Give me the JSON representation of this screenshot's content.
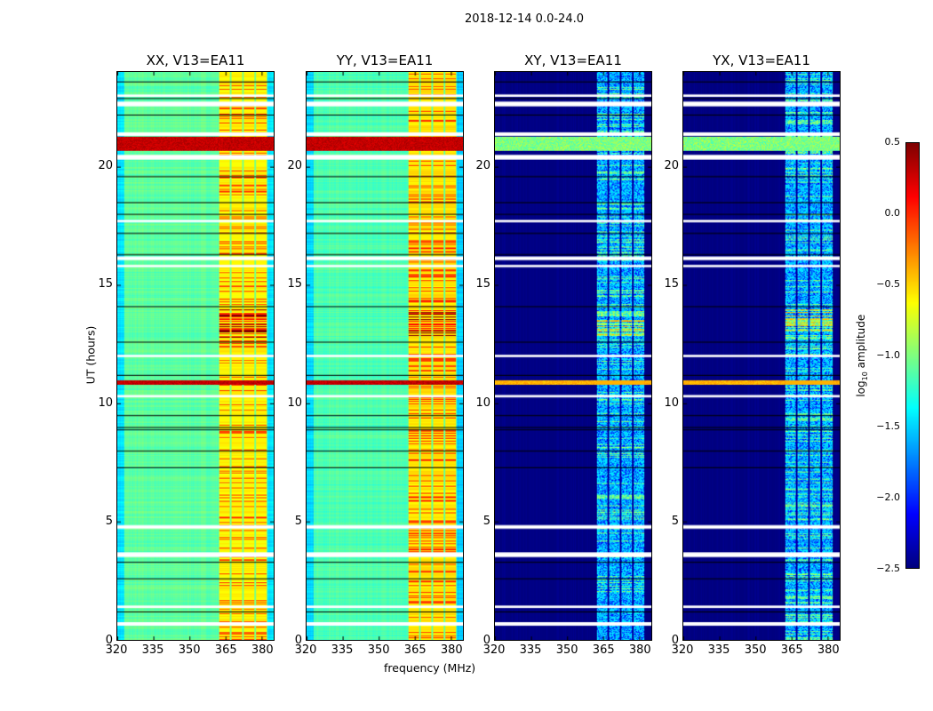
{
  "chart_data": {
    "type": "heatmap",
    "title": "2018-12-14 0.0-24.0",
    "xlabel": "frequency (MHz)",
    "ylabel": "UT (hours)",
    "xlim": [
      320,
      385
    ],
    "ylim": [
      0,
      24
    ],
    "xticks": [
      "320",
      "335",
      "350",
      "365",
      "380"
    ],
    "yticks": [
      "0",
      "5",
      "10",
      "15",
      "20"
    ],
    "colormap": "jet",
    "colorbar": {
      "label": "log10 amplitude",
      "label_main": "log",
      "label_sub": "10",
      "label_rest": " amplitude",
      "range": [
        -2.5,
        0.5
      ],
      "ticks": [
        "0.5",
        "0.0",
        "−0.5",
        "−1.0",
        "−1.5",
        "−2.0",
        "−2.5"
      ]
    },
    "panels": [
      {
        "title": "XX, V13=EA11",
        "baseline": -1.1,
        "band_level": -0.6,
        "rfi_level": 0.3
      },
      {
        "title": "YY, V13=EA11",
        "baseline": -1.15,
        "band_level": -0.55,
        "rfi_level": 0.3
      },
      {
        "title": "XY, V13=EA11",
        "baseline": -2.5,
        "band_level": -1.5,
        "rfi_level": -0.4
      },
      {
        "title": "YX, V13=EA11",
        "baseline": -2.5,
        "band_level": -1.5,
        "rfi_level": -0.4
      }
    ],
    "bright_channel_range_mhz": [
      362,
      382
    ],
    "rfi_time_bands_hours": [
      [
        10.8,
        11.0
      ],
      [
        20.7,
        21.3
      ]
    ],
    "flagged_times_hours": [
      [
        0.6,
        0.75
      ],
      [
        1.35,
        1.45
      ],
      [
        3.5,
        3.7
      ],
      [
        4.7,
        4.85
      ],
      [
        10.25,
        10.35
      ],
      [
        11.95,
        12.05
      ],
      [
        15.75,
        15.85
      ],
      [
        16.05,
        16.2
      ],
      [
        17.65,
        17.75
      ],
      [
        20.3,
        20.5
      ],
      [
        21.3,
        21.45
      ],
      [
        22.55,
        22.75
      ],
      [
        22.95,
        23.05
      ]
    ],
    "dark_line_times_hours": [
      1.2,
      2.6,
      3.3,
      7.3,
      8.0,
      8.9,
      9.0,
      9.5,
      11.2,
      12.6,
      14.1,
      16.3,
      17.2,
      18.0,
      18.5,
      19.6,
      22.2,
      22.9,
      23.6
    ]
  }
}
